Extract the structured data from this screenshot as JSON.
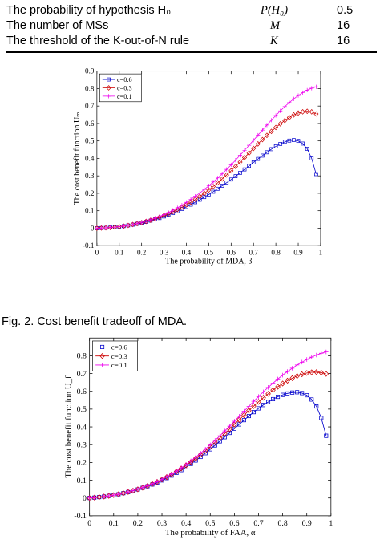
{
  "table": {
    "rows": [
      {
        "label": "The probability of hypothesis H₀",
        "symbol": "P(H₀)",
        "value": "0.5"
      },
      {
        "label": "The number of MSs",
        "symbol": "M",
        "value": "16"
      },
      {
        "label": "The threshold of the K-out-of-N rule",
        "symbol": "K",
        "value": "16"
      }
    ]
  },
  "captions": {
    "fig2": "Fig. 2.    Cost benefit tradeoff of MDA."
  },
  "colors": {
    "c06": "#0000cc",
    "c03": "#cc0000",
    "c01": "#ee00ee"
  },
  "chart_data": [
    {
      "type": "line",
      "xlabel": "The probability of MDA, β",
      "ylabel": "The cost benefit function Uₘ",
      "xlim": [
        0,
        1
      ],
      "ylim": [
        -0.1,
        0.9
      ],
      "xticks": [
        "0",
        "0.1",
        "0.2",
        "0.3",
        "0.4",
        "0.5",
        "0.6",
        "0.7",
        "0.8",
        "0.9",
        "1"
      ],
      "yticks": [
        "-0.1",
        "0",
        "0.1",
        "0.2",
        "0.3",
        "0.4",
        "0.5",
        "0.6",
        "0.7",
        "0.8",
        "0.9"
      ],
      "legend_position": "top-left",
      "grid": false,
      "x": [
        0,
        0.02,
        0.04,
        0.06,
        0.08,
        0.1,
        0.12,
        0.14,
        0.16,
        0.18,
        0.2,
        0.22,
        0.24,
        0.26,
        0.28,
        0.3,
        0.32,
        0.34,
        0.36,
        0.38,
        0.4,
        0.42,
        0.44,
        0.46,
        0.48,
        0.5,
        0.52,
        0.54,
        0.56,
        0.58,
        0.6,
        0.62,
        0.64,
        0.66,
        0.68,
        0.7,
        0.72,
        0.74,
        0.76,
        0.78,
        0.8,
        0.82,
        0.84,
        0.86,
        0.88,
        0.9,
        0.92,
        0.94,
        0.96,
        0.98
      ],
      "series": [
        {
          "name": "c=0.6",
          "marker": "square",
          "values": [
            0,
            0.001,
            0.002,
            0.004,
            0.006,
            0.009,
            0.012,
            0.016,
            0.02,
            0.025,
            0.03,
            0.036,
            0.043,
            0.05,
            0.058,
            0.067,
            0.077,
            0.087,
            0.098,
            0.11,
            0.122,
            0.135,
            0.149,
            0.163,
            0.178,
            0.193,
            0.209,
            0.226,
            0.243,
            0.261,
            0.279,
            0.298,
            0.317,
            0.337,
            0.357,
            0.377,
            0.397,
            0.416,
            0.435,
            0.453,
            0.469,
            0.483,
            0.495,
            0.502,
            0.505,
            0.5,
            0.485,
            0.455,
            0.4,
            0.31
          ]
        },
        {
          "name": "c=0.3",
          "marker": "diamond",
          "values": [
            0,
            0.001,
            0.002,
            0.004,
            0.006,
            0.009,
            0.012,
            0.016,
            0.021,
            0.026,
            0.032,
            0.039,
            0.046,
            0.054,
            0.063,
            0.073,
            0.083,
            0.095,
            0.107,
            0.12,
            0.134,
            0.149,
            0.165,
            0.182,
            0.2,
            0.219,
            0.239,
            0.26,
            0.282,
            0.305,
            0.329,
            0.354,
            0.379,
            0.405,
            0.431,
            0.457,
            0.483,
            0.508,
            0.532,
            0.555,
            0.577,
            0.598,
            0.617,
            0.634,
            0.649,
            0.66,
            0.667,
            0.67,
            0.667,
            0.655
          ]
        },
        {
          "name": "c=0.1",
          "marker": "plus",
          "values": [
            0,
            0.001,
            0.002,
            0.004,
            0.006,
            0.009,
            0.012,
            0.016,
            0.021,
            0.027,
            0.033,
            0.04,
            0.048,
            0.057,
            0.067,
            0.078,
            0.09,
            0.103,
            0.117,
            0.132,
            0.148,
            0.165,
            0.183,
            0.202,
            0.222,
            0.243,
            0.265,
            0.288,
            0.312,
            0.337,
            0.363,
            0.39,
            0.418,
            0.446,
            0.475,
            0.504,
            0.533,
            0.562,
            0.591,
            0.619,
            0.646,
            0.672,
            0.697,
            0.72,
            0.741,
            0.76,
            0.777,
            0.791,
            0.802,
            0.81
          ]
        }
      ]
    },
    {
      "type": "line",
      "xlabel": "The probability of FAA, α",
      "ylabel": "The cost benefit function U_f",
      "xlim": [
        0,
        1
      ],
      "ylim": [
        -0.1,
        0.9
      ],
      "xticks": [
        "0",
        "0.1",
        "0.2",
        "0.3",
        "0.4",
        "0.5",
        "0.6",
        "0.7",
        "0.8",
        "0.9",
        "1"
      ],
      "yticks": [
        "-0.1",
        "0",
        "0.1",
        "0.2",
        "0.3",
        "0.4",
        "0.5",
        "0.6",
        "0.7",
        "0.8"
      ],
      "legend_position": "top-left",
      "grid": false,
      "x": [
        0,
        0.02,
        0.04,
        0.06,
        0.08,
        0.1,
        0.12,
        0.14,
        0.16,
        0.18,
        0.2,
        0.22,
        0.24,
        0.26,
        0.28,
        0.3,
        0.32,
        0.34,
        0.36,
        0.38,
        0.4,
        0.42,
        0.44,
        0.46,
        0.48,
        0.5,
        0.52,
        0.54,
        0.56,
        0.58,
        0.6,
        0.62,
        0.64,
        0.66,
        0.68,
        0.7,
        0.72,
        0.74,
        0.76,
        0.78,
        0.8,
        0.82,
        0.84,
        0.86,
        0.88,
        0.9,
        0.92,
        0.94,
        0.96,
        0.98
      ],
      "series": [
        {
          "name": "c=0.6",
          "marker": "square",
          "values": [
            0,
            0.002,
            0.005,
            0.008,
            0.012,
            0.016,
            0.021,
            0.027,
            0.033,
            0.04,
            0.048,
            0.057,
            0.066,
            0.076,
            0.087,
            0.099,
            0.112,
            0.126,
            0.141,
            0.157,
            0.174,
            0.192,
            0.211,
            0.231,
            0.252,
            0.274,
            0.296,
            0.319,
            0.342,
            0.366,
            0.39,
            0.414,
            0.438,
            0.461,
            0.483,
            0.504,
            0.523,
            0.54,
            0.556,
            0.569,
            0.58,
            0.588,
            0.593,
            0.595,
            0.59,
            0.578,
            0.554,
            0.515,
            0.45,
            0.35
          ]
        },
        {
          "name": "c=0.3",
          "marker": "diamond",
          "values": [
            0,
            0.002,
            0.005,
            0.008,
            0.012,
            0.016,
            0.021,
            0.027,
            0.034,
            0.041,
            0.049,
            0.058,
            0.068,
            0.079,
            0.091,
            0.104,
            0.118,
            0.133,
            0.149,
            0.166,
            0.184,
            0.203,
            0.223,
            0.244,
            0.266,
            0.289,
            0.313,
            0.337,
            0.362,
            0.388,
            0.414,
            0.44,
            0.466,
            0.492,
            0.517,
            0.541,
            0.564,
            0.586,
            0.607,
            0.626,
            0.644,
            0.66,
            0.674,
            0.686,
            0.696,
            0.703,
            0.707,
            0.708,
            0.705,
            0.698
          ]
        },
        {
          "name": "c=0.1",
          "marker": "plus",
          "values": [
            0,
            0.002,
            0.005,
            0.008,
            0.012,
            0.016,
            0.021,
            0.027,
            0.034,
            0.042,
            0.05,
            0.059,
            0.069,
            0.08,
            0.092,
            0.105,
            0.12,
            0.135,
            0.152,
            0.17,
            0.189,
            0.209,
            0.23,
            0.252,
            0.275,
            0.299,
            0.324,
            0.35,
            0.377,
            0.404,
            0.432,
            0.46,
            0.488,
            0.516,
            0.544,
            0.571,
            0.597,
            0.622,
            0.646,
            0.669,
            0.691,
            0.711,
            0.73,
            0.748,
            0.764,
            0.779,
            0.792,
            0.804,
            0.814,
            0.822
          ]
        }
      ]
    }
  ]
}
